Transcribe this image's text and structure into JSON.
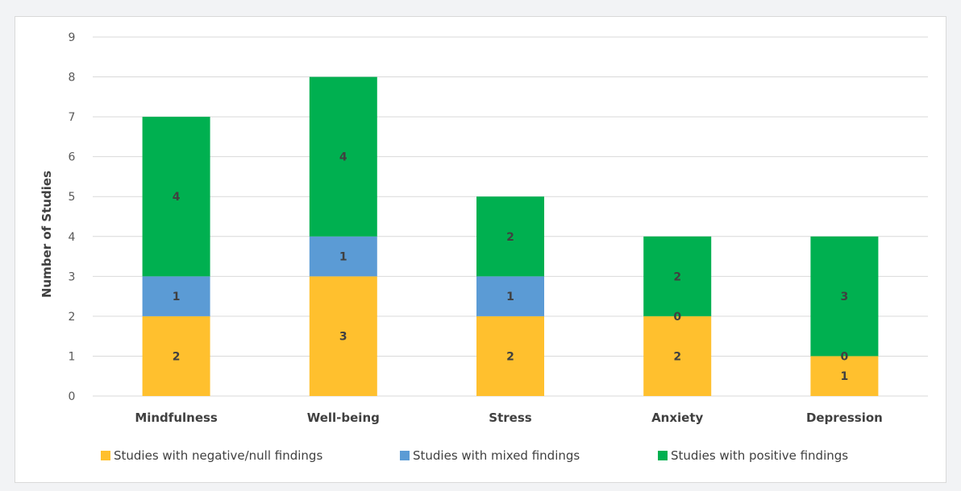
{
  "chart_data": {
    "type": "bar",
    "stacked": true,
    "title": "",
    "xlabel": "",
    "ylabel": "Number of Studies",
    "ylim": [
      0,
      9
    ],
    "yticks": [
      "0",
      "1",
      "2",
      "3",
      "4",
      "5",
      "6",
      "7",
      "8",
      "9"
    ],
    "grid": true,
    "legend_position": "bottom",
    "categories": [
      "Mindfulness",
      "Well-being",
      "Stress",
      "Anxiety",
      "Depression"
    ],
    "series": [
      {
        "name": "Studies with negative/null findings",
        "color": "#ffc02e",
        "values": [
          2,
          3,
          2,
          2,
          1
        ]
      },
      {
        "name": "Studies with mixed findings",
        "color": "#5b9bd5",
        "values": [
          1,
          1,
          1,
          0,
          0
        ]
      },
      {
        "name": "Studies with positive findings",
        "color": "#00b050",
        "values": [
          4,
          4,
          2,
          2,
          3
        ]
      }
    ]
  }
}
